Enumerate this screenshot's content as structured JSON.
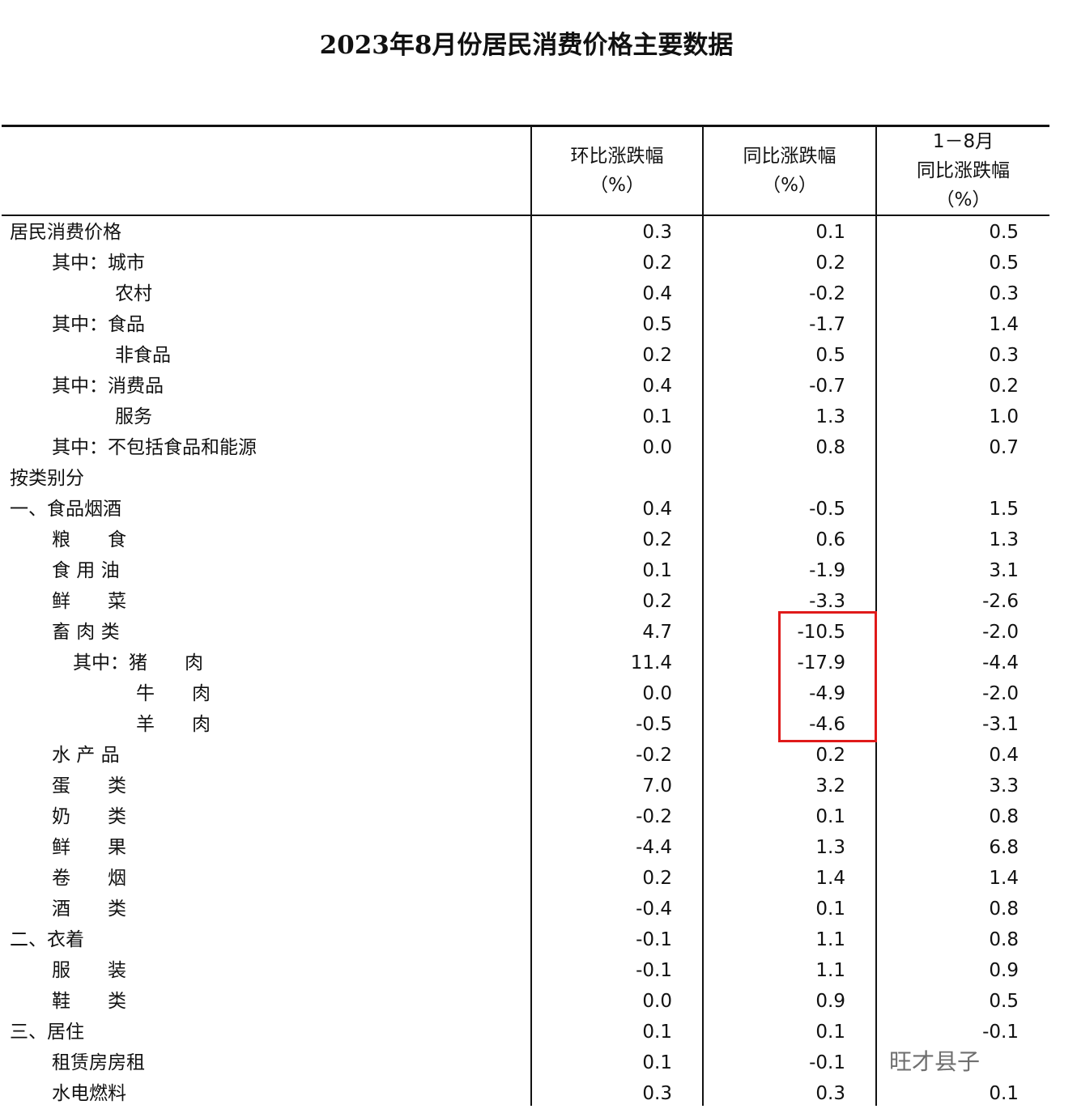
{
  "title": "2023年8月份居民消费价格主要数据",
  "headers": [
    {
      "line1": "环比涨跌幅",
      "line2": "（%）"
    },
    {
      "line1": "同比涨跌幅",
      "line2": "（%）"
    },
    {
      "line0": "1－8月",
      "line1": "同比涨跌幅",
      "line2": "（%）"
    }
  ],
  "rows": [
    {
      "label": "居民消费价格",
      "level": 0,
      "mom": "0.3",
      "yoy": "0.1",
      "ytd": "0.5"
    },
    {
      "label": "其中：城市",
      "level": 1,
      "mom": "0.2",
      "yoy": "0.2",
      "ytd": "0.5"
    },
    {
      "label": "农村",
      "level": 2,
      "mom": "0.4",
      "yoy": "-0.2",
      "ytd": "0.3"
    },
    {
      "label": "其中：食品",
      "level": 1,
      "mom": "0.5",
      "yoy": "-1.7",
      "ytd": "1.4"
    },
    {
      "label": "非食品",
      "level": 2,
      "mom": "0.2",
      "yoy": "0.5",
      "ytd": "0.3"
    },
    {
      "label": "其中：消费品",
      "level": 1,
      "mom": "0.4",
      "yoy": "-0.7",
      "ytd": "0.2"
    },
    {
      "label": "服务",
      "level": 2,
      "mom": "0.1",
      "yoy": "1.3",
      "ytd": "1.0"
    },
    {
      "label": "其中：不包括食品和能源",
      "level": 1,
      "mom": "0.0",
      "yoy": "0.8",
      "ytd": "0.7"
    },
    {
      "label": "按类别分",
      "level": 0,
      "mom": "",
      "yoy": "",
      "ytd": ""
    },
    {
      "label": "一、食品烟酒",
      "level": 0,
      "mom": "0.4",
      "yoy": "-0.5",
      "ytd": "1.5"
    },
    {
      "label": "粮　　食",
      "level": 1,
      "mom": "0.2",
      "yoy": "0.6",
      "ytd": "1.3"
    },
    {
      "label": "食 用 油",
      "level": 1,
      "mom": "0.1",
      "yoy": "-1.9",
      "ytd": "3.1"
    },
    {
      "label": "鲜　　菜",
      "level": 1,
      "mom": "0.2",
      "yoy": "-3.3",
      "ytd": "-2.6"
    },
    {
      "label": "畜 肉 类",
      "level": 1,
      "mom": "4.7",
      "yoy": "-10.5",
      "ytd": "-2.0"
    },
    {
      "label": "其中：猪　　肉",
      "level": 3,
      "mom": "11.4",
      "yoy": "-17.9",
      "ytd": "-4.4"
    },
    {
      "label": "牛　　肉",
      "level": 4,
      "mom": "0.0",
      "yoy": "-4.9",
      "ytd": "-2.0"
    },
    {
      "label": "羊　　肉",
      "level": 4,
      "mom": "-0.5",
      "yoy": "-4.6",
      "ytd": "-3.1"
    },
    {
      "label": "水 产 品",
      "level": 1,
      "mom": "-0.2",
      "yoy": "0.2",
      "ytd": "0.4"
    },
    {
      "label": "蛋　　类",
      "level": 1,
      "mom": "7.0",
      "yoy": "3.2",
      "ytd": "3.3"
    },
    {
      "label": "奶　　类",
      "level": 1,
      "mom": "-0.2",
      "yoy": "0.1",
      "ytd": "0.8"
    },
    {
      "label": "鲜　　果",
      "level": 1,
      "mom": "-4.4",
      "yoy": "1.3",
      "ytd": "6.8"
    },
    {
      "label": "卷　　烟",
      "level": 1,
      "mom": "0.2",
      "yoy": "1.4",
      "ytd": "1.4"
    },
    {
      "label": "酒　　类",
      "level": 1,
      "mom": "-0.4",
      "yoy": "0.1",
      "ytd": "0.8"
    },
    {
      "label": "二、衣着",
      "level": 0,
      "mom": "-0.1",
      "yoy": "1.1",
      "ytd": "0.8"
    },
    {
      "label": "服　　装",
      "level": 1,
      "mom": "-0.1",
      "yoy": "1.1",
      "ytd": "0.9"
    },
    {
      "label": "鞋　　类",
      "level": 1,
      "mom": "0.0",
      "yoy": "0.9",
      "ytd": "0.5"
    },
    {
      "label": "三、居住",
      "level": 0,
      "mom": "0.1",
      "yoy": "0.1",
      "ytd": "-0.1"
    },
    {
      "label": "租赁房房租",
      "level": 1,
      "mom": "0.1",
      "yoy": "-0.1",
      "ytd": ""
    },
    {
      "label": "水电燃料",
      "level": 1,
      "mom": "0.3",
      "yoy": "0.3",
      "ytd": "0.1"
    }
  ],
  "highlight_color": "#e01a1a",
  "watermark": "旺才县子"
}
